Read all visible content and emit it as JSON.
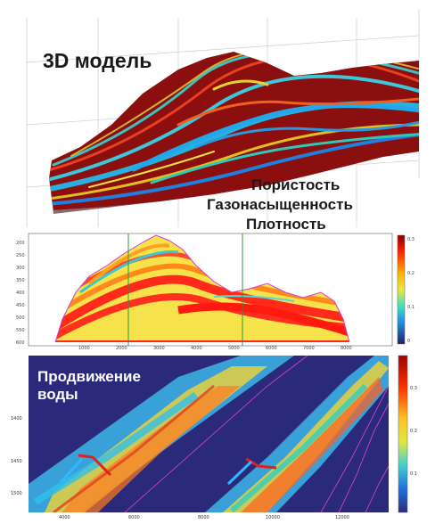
{
  "panel1": {
    "title": "3D модель",
    "properties": [
      "Пористость",
      "Газонасыщенность",
      "Плотность"
    ]
  },
  "panel2": {
    "y_ticks": [
      "200",
      "250",
      "300",
      "350",
      "400",
      "450",
      "500",
      "550",
      "600"
    ],
    "x_ticks": [
      "1000",
      "2000",
      "3000",
      "4000",
      "5000",
      "6000",
      "7000",
      "8000"
    ],
    "colorbar_ticks": [
      "0.3",
      "0.2",
      "0.1",
      "0"
    ]
  },
  "panel3": {
    "title_line1": "Продвижение",
    "title_line2": "воды",
    "y_ticks": [
      "1400",
      "1450",
      "1500"
    ],
    "x_ticks": [
      "4000",
      "6000",
      "8000",
      "10000",
      "12000"
    ],
    "colorbar_ticks": [
      "0.3",
      "0.2",
      "0.1"
    ]
  },
  "colors": {
    "panel3_background": "#2b2a7a",
    "accent_red": "#e02020",
    "marker_green": "#2a9a3a",
    "outline_magenta": "#e040e0"
  }
}
